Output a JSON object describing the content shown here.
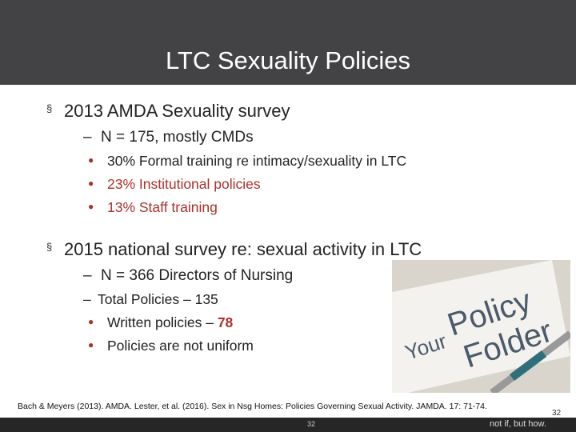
{
  "header": {
    "title": "LTC Sexuality Policies"
  },
  "sections": [
    {
      "heading": "2013 AMDA Sexuality survey",
      "sub": "N = 175, mostly CMDs",
      "items": [
        "30% Formal training re intimacy/sexuality in LTC",
        "23% Institutional policies",
        "13% Staff training"
      ]
    },
    {
      "heading": "2015 national survey re: sexual activity in LTC",
      "sub": "N = 366 Directors of Nursing",
      "sub2": "Total Policies – 135",
      "items": [
        "Written policies –",
        "Policies are not uniform"
      ],
      "highlight": "78"
    }
  ],
  "image": {
    "words": [
      "Your",
      "Policy",
      "Folder"
    ]
  },
  "citation": "Bach & Meyers (2013). AMDA. Lester, et al. (2016). Sex in Nsg Homes: Policies Governing Sexual Activity. JAMDA. 17: 71-74.",
  "footer": {
    "page": "32",
    "page_small": "32",
    "tagline": "not if, but how."
  }
}
